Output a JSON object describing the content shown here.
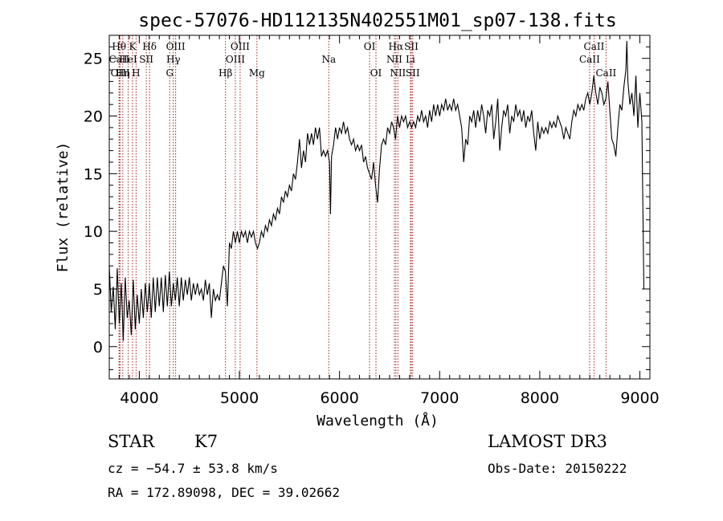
{
  "chart_data": {
    "type": "line",
    "title": "spec-57076-HD112135N402551M01_sp07-138.fits",
    "xlabel": "Wavelength (Å)",
    "ylabel": "Flux (relative)",
    "xlim": [
      3700,
      9100
    ],
    "ylim": [
      -2.8,
      27
    ],
    "x_ticks": [
      4000,
      5000,
      6000,
      7000,
      8000,
      9000
    ],
    "y_ticks": [
      0,
      5,
      10,
      15,
      20,
      25
    ],
    "grid": false,
    "series": [
      {
        "points": [
          [
            3700,
            7.0
          ],
          [
            3720,
            3.0
          ],
          [
            3740,
            5.2
          ],
          [
            3760,
            1.5
          ],
          [
            3780,
            6.8
          ],
          [
            3800,
            2.0
          ],
          [
            3820,
            5.5
          ],
          [
            3840,
            0.5
          ],
          [
            3860,
            6.0
          ],
          [
            3880,
            2.5
          ],
          [
            3900,
            4.0
          ],
          [
            3920,
            1.0
          ],
          [
            3940,
            5.8
          ],
          [
            3960,
            1.5
          ],
          [
            3980,
            4.5
          ],
          [
            4000,
            2.0
          ],
          [
            4020,
            5.0
          ],
          [
            4040,
            2.5
          ],
          [
            4060,
            5.5
          ],
          [
            4080,
            3.0
          ],
          [
            4100,
            5.5
          ],
          [
            4120,
            2.5
          ],
          [
            4140,
            6.0
          ],
          [
            4160,
            3.0
          ],
          [
            4180,
            6.0
          ],
          [
            4200,
            3.5
          ],
          [
            4220,
            6.0
          ],
          [
            4240,
            3.0
          ],
          [
            4260,
            6.2
          ],
          [
            4280,
            3.5
          ],
          [
            4300,
            6.5
          ],
          [
            4320,
            3.5
          ],
          [
            4340,
            5.5
          ],
          [
            4360,
            4.0
          ],
          [
            4380,
            6.0
          ],
          [
            4400,
            3.5
          ],
          [
            4420,
            6.0
          ],
          [
            4440,
            4.0
          ],
          [
            4460,
            5.8
          ],
          [
            4480,
            4.5
          ],
          [
            4500,
            6.0
          ],
          [
            4520,
            4.0
          ],
          [
            4540,
            5.5
          ],
          [
            4560,
            4.5
          ],
          [
            4580,
            5.5
          ],
          [
            4600,
            4.5
          ],
          [
            4620,
            5.0
          ],
          [
            4640,
            4.0
          ],
          [
            4660,
            5.8
          ],
          [
            4680,
            4.5
          ],
          [
            4700,
            5.5
          ],
          [
            4720,
            2.5
          ],
          [
            4740,
            5.0
          ],
          [
            4760,
            4.0
          ],
          [
            4780,
            4.5
          ],
          [
            4800,
            4.0
          ],
          [
            4820,
            5.5
          ],
          [
            4840,
            7.0
          ],
          [
            4860,
            6.5
          ],
          [
            4880,
            3.5
          ],
          [
            4900,
            9.0
          ],
          [
            4920,
            8.5
          ],
          [
            4940,
            10.0
          ],
          [
            4960,
            9.0
          ],
          [
            4980,
            10.0
          ],
          [
            5000,
            9.0
          ],
          [
            5020,
            10.0
          ],
          [
            5040,
            9.5
          ],
          [
            5060,
            10.0
          ],
          [
            5080,
            9.0
          ],
          [
            5100,
            10.0
          ],
          [
            5120,
            9.5
          ],
          [
            5140,
            10.0
          ],
          [
            5160,
            9.0
          ],
          [
            5180,
            8.5
          ],
          [
            5200,
            9.0
          ],
          [
            5220,
            10.0
          ],
          [
            5240,
            9.5
          ],
          [
            5260,
            10.5
          ],
          [
            5280,
            10.0
          ],
          [
            5300,
            11.0
          ],
          [
            5320,
            10.5
          ],
          [
            5340,
            11.5
          ],
          [
            5360,
            11.0
          ],
          [
            5380,
            12.0
          ],
          [
            5400,
            11.5
          ],
          [
            5420,
            13.0
          ],
          [
            5440,
            12.5
          ],
          [
            5460,
            13.5
          ],
          [
            5480,
            13.0
          ],
          [
            5500,
            14.0
          ],
          [
            5520,
            13.5
          ],
          [
            5540,
            15.0
          ],
          [
            5560,
            14.5
          ],
          [
            5580,
            16.0
          ],
          [
            5600,
            18.0
          ],
          [
            5620,
            15.5
          ],
          [
            5640,
            17.0
          ],
          [
            5660,
            16.0
          ],
          [
            5680,
            18.5
          ],
          [
            5700,
            17.5
          ],
          [
            5720,
            18.5
          ],
          [
            5740,
            17.5
          ],
          [
            5760,
            19.0
          ],
          [
            5780,
            18.0
          ],
          [
            5800,
            19.0
          ],
          [
            5820,
            16.5
          ],
          [
            5840,
            17.0
          ],
          [
            5860,
            16.5
          ],
          [
            5880,
            17.0
          ],
          [
            5900,
            16.0
          ],
          [
            5910,
            11.5
          ],
          [
            5920,
            16.5
          ],
          [
            5940,
            17.5
          ],
          [
            5960,
            19.0
          ],
          [
            5980,
            18.0
          ],
          [
            6000,
            19.0
          ],
          [
            6020,
            18.5
          ],
          [
            6040,
            19.5
          ],
          [
            6060,
            18.5
          ],
          [
            6080,
            19.0
          ],
          [
            6100,
            18.0
          ],
          [
            6120,
            17.5
          ],
          [
            6140,
            18.0
          ],
          [
            6160,
            17.0
          ],
          [
            6180,
            17.5
          ],
          [
            6200,
            17.0
          ],
          [
            6220,
            17.5
          ],
          [
            6240,
            16.0
          ],
          [
            6260,
            16.5
          ],
          [
            6280,
            15.5
          ],
          [
            6300,
            15.0
          ],
          [
            6320,
            14.5
          ],
          [
            6340,
            16.0
          ],
          [
            6360,
            14.0
          ],
          [
            6380,
            12.5
          ],
          [
            6400,
            15.5
          ],
          [
            6420,
            17.5
          ],
          [
            6440,
            18.0
          ],
          [
            6460,
            17.5
          ],
          [
            6480,
            19.0
          ],
          [
            6500,
            18.5
          ],
          [
            6520,
            19.5
          ],
          [
            6540,
            19.0
          ],
          [
            6560,
            18.0
          ],
          [
            6580,
            20.0
          ],
          [
            6600,
            19.0
          ],
          [
            6620,
            20.0
          ],
          [
            6640,
            19.5
          ],
          [
            6660,
            20.0
          ],
          [
            6680,
            19.0
          ],
          [
            6700,
            19.5
          ],
          [
            6720,
            19.0
          ],
          [
            6740,
            19.5
          ],
          [
            6760,
            19.0
          ],
          [
            6780,
            20.0
          ],
          [
            6800,
            19.5
          ],
          [
            6820,
            20.5
          ],
          [
            6840,
            19.5
          ],
          [
            6860,
            20.0
          ],
          [
            6880,
            19.0
          ],
          [
            6900,
            20.5
          ],
          [
            6920,
            19.5
          ],
          [
            6940,
            21.0
          ],
          [
            6960,
            20.0
          ],
          [
            6980,
            21.0
          ],
          [
            7000,
            20.0
          ],
          [
            7020,
            21.0
          ],
          [
            7040,
            20.5
          ],
          [
            7060,
            21.5
          ],
          [
            7080,
            20.5
          ],
          [
            7100,
            21.0
          ],
          [
            7120,
            20.5
          ],
          [
            7140,
            21.5
          ],
          [
            7160,
            20.5
          ],
          [
            7180,
            21.0
          ],
          [
            7200,
            20.0
          ],
          [
            7220,
            19.0
          ],
          [
            7240,
            16.0
          ],
          [
            7260,
            18.0
          ],
          [
            7280,
            17.5
          ],
          [
            7300,
            20.0
          ],
          [
            7320,
            19.5
          ],
          [
            7340,
            20.5
          ],
          [
            7360,
            19.0
          ],
          [
            7380,
            20.5
          ],
          [
            7400,
            19.5
          ],
          [
            7420,
            21.0
          ],
          [
            7440,
            20.0
          ],
          [
            7460,
            18.5
          ],
          [
            7480,
            20.5
          ],
          [
            7500,
            20.0
          ],
          [
            7520,
            21.0
          ],
          [
            7540,
            18.0
          ],
          [
            7560,
            19.5
          ],
          [
            7580,
            21.5
          ],
          [
            7600,
            17.0
          ],
          [
            7620,
            19.0
          ],
          [
            7640,
            20.5
          ],
          [
            7660,
            20.0
          ],
          [
            7680,
            21.0
          ],
          [
            7700,
            18.5
          ],
          [
            7720,
            20.0
          ],
          [
            7740,
            19.5
          ],
          [
            7760,
            21.0
          ],
          [
            7780,
            20.0
          ],
          [
            7800,
            20.5
          ],
          [
            7820,
            19.5
          ],
          [
            7840,
            20.5
          ],
          [
            7860,
            19.0
          ],
          [
            7880,
            20.0
          ],
          [
            7900,
            19.5
          ],
          [
            7920,
            20.5
          ],
          [
            7940,
            18.5
          ],
          [
            7960,
            17.0
          ],
          [
            7980,
            19.5
          ],
          [
            8000,
            18.0
          ],
          [
            8020,
            19.0
          ],
          [
            8040,
            18.5
          ],
          [
            8060,
            19.0
          ],
          [
            8080,
            18.5
          ],
          [
            8100,
            19.5
          ],
          [
            8120,
            19.0
          ],
          [
            8140,
            19.5
          ],
          [
            8160,
            19.0
          ],
          [
            8180,
            20.0
          ],
          [
            8200,
            19.5
          ],
          [
            8220,
            19.0
          ],
          [
            8240,
            18.0
          ],
          [
            8260,
            19.0
          ],
          [
            8280,
            18.5
          ],
          [
            8300,
            18.0
          ],
          [
            8320,
            19.5
          ],
          [
            8340,
            20.5
          ],
          [
            8360,
            20.0
          ],
          [
            8380,
            21.0
          ],
          [
            8400,
            20.5
          ],
          [
            8420,
            21.0
          ],
          [
            8440,
            20.5
          ],
          [
            8460,
            21.5
          ],
          [
            8480,
            22.0
          ],
          [
            8500,
            21.0
          ],
          [
            8520,
            22.0
          ],
          [
            8540,
            23.5
          ],
          [
            8560,
            22.0
          ],
          [
            8580,
            21.0
          ],
          [
            8600,
            22.5
          ],
          [
            8620,
            22.0
          ],
          [
            8640,
            21.0
          ],
          [
            8660,
            21.5
          ],
          [
            8680,
            23.0
          ],
          [
            8700,
            20.5
          ],
          [
            8720,
            18.0
          ],
          [
            8740,
            17.5
          ],
          [
            8760,
            16.5
          ],
          [
            8780,
            19.0
          ],
          [
            8800,
            21.0
          ],
          [
            8820,
            20.5
          ],
          [
            8840,
            22.5
          ],
          [
            8860,
            24.0
          ],
          [
            8870,
            26.5
          ],
          [
            8880,
            23.0
          ],
          [
            8900,
            21.0
          ],
          [
            8920,
            22.0
          ],
          [
            8940,
            20.0
          ],
          [
            8960,
            23.5
          ],
          [
            8980,
            19.0
          ],
          [
            9000,
            22.0
          ],
          [
            9020,
            19.5
          ],
          [
            9040,
            5.0
          ]
        ]
      }
    ],
    "lines": [
      {
        "label": "Hθ",
        "wl": 3798,
        "row": 0
      },
      {
        "label": "CaII",
        "wl": 3800,
        "row": 1
      },
      {
        "label": "OIII",
        "wl": 3810,
        "row": 2
      },
      {
        "label": "K",
        "wl": 3933,
        "row": 0
      },
      {
        "label": "HeI",
        "wl": 3889,
        "row": 1
      },
      {
        "label": "Hη",
        "wl": 3835,
        "row": 2
      },
      {
        "label": "Hδ",
        "wl": 4102,
        "row": 0
      },
      {
        "label": "SII",
        "wl": 4070,
        "row": 1
      },
      {
        "label": "H",
        "wl": 3968,
        "row": 2
      },
      {
        "label": "OIII",
        "wl": 4363,
        "row": 0
      },
      {
        "label": "Hγ",
        "wl": 4340,
        "row": 1
      },
      {
        "label": "G",
        "wl": 4304,
        "row": 2
      },
      {
        "label": "OIII",
        "wl": 5007,
        "row": 0
      },
      {
        "label": "OIII",
        "wl": 4959,
        "row": 1
      },
      {
        "label": "Hβ",
        "wl": 4861,
        "row": 2
      },
      {
        "label": "Mg",
        "wl": 5175,
        "row": 2
      },
      {
        "label": "Na",
        "wl": 5893,
        "row": 1
      },
      {
        "label": "OI",
        "wl": 6300,
        "row": 0
      },
      {
        "label": "OI",
        "wl": 6364,
        "row": 2
      },
      {
        "label": "Hα",
        "wl": 6563,
        "row": 0
      },
      {
        "label": "NII",
        "wl": 6548,
        "row": 1
      },
      {
        "label": "NII",
        "wl": 6583,
        "row": 2
      },
      {
        "label": "SII",
        "wl": 6717,
        "row": 0
      },
      {
        "label": "Li",
        "wl": 6708,
        "row": 1
      },
      {
        "label": "SII",
        "wl": 6731,
        "row": 2
      },
      {
        "label": "CaII",
        "wl": 8542,
        "row": 0
      },
      {
        "label": "CaII",
        "wl": 8498,
        "row": 1
      },
      {
        "label": "CaII",
        "wl": 8662,
        "row": 2
      }
    ]
  },
  "info": {
    "class_label": "STAR",
    "subclass": "K7",
    "survey": "LAMOST DR3",
    "cz": "cz = −54.7 ± 53.8 km/s",
    "obs_date": "Obs-Date: 20150222",
    "coords": "RA = 172.89098, DEC =  39.02662"
  },
  "colors": {
    "spectrum": "#000000",
    "line_markers": "#a0201f"
  }
}
